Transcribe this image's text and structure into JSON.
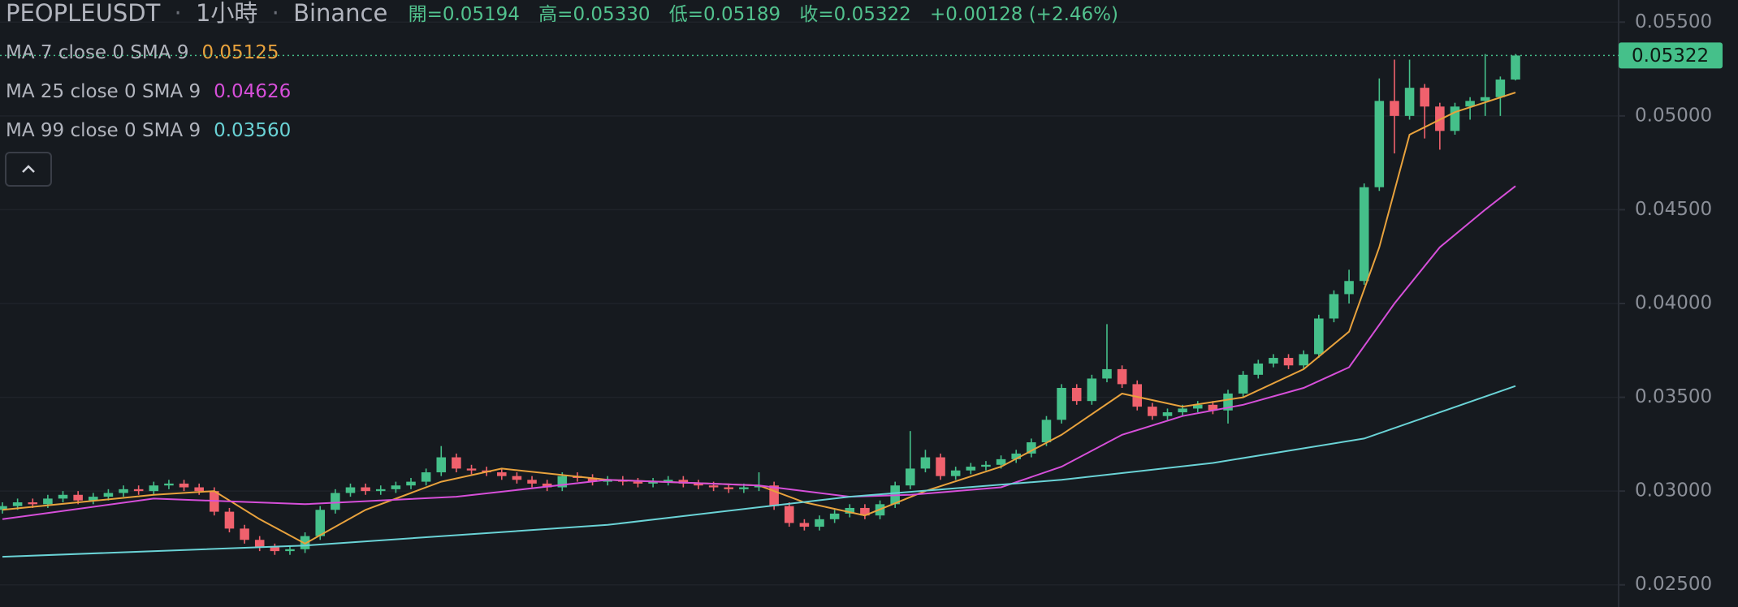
{
  "chart_data": {
    "type": "candlestick",
    "symbol": "PEOPLEUSDT",
    "interval": "1小時",
    "exchange": "Binance",
    "ohlc_header": [
      "開=0.05194",
      "高=0.05330",
      "低=0.05189",
      "收=0.05322",
      "+0.00128 (+2.46%)"
    ],
    "up_color": "#45c08a",
    "down_color": "#f0616d",
    "open": [
      0.029,
      0.0292,
      0.0294,
      0.0293,
      0.0296,
      0.0298,
      0.0295,
      0.0297,
      0.0299,
      0.0301,
      0.03,
      0.0303,
      0.0304,
      0.0302,
      0.03,
      0.0289,
      0.028,
      0.0274,
      0.027,
      0.0268,
      0.0269,
      0.0276,
      0.029,
      0.0299,
      0.0302,
      0.03,
      0.0301,
      0.0303,
      0.0305,
      0.031,
      0.0318,
      0.0312,
      0.0311,
      0.031,
      0.0308,
      0.0306,
      0.0304,
      0.0302,
      0.0308,
      0.0307,
      0.0305,
      0.0306,
      0.0305,
      0.0304,
      0.0305,
      0.0306,
      0.0304,
      0.0303,
      0.0302,
      0.0301,
      0.0302,
      0.0303,
      0.0292,
      0.0283,
      0.0281,
      0.0285,
      0.0288,
      0.0291,
      0.0287,
      0.0293,
      0.0303,
      0.0312,
      0.0318,
      0.0308,
      0.0311,
      0.0313,
      0.0314,
      0.0317,
      0.032,
      0.0326,
      0.0338,
      0.0355,
      0.0348,
      0.036,
      0.0365,
      0.0357,
      0.0345,
      0.034,
      0.0342,
      0.0344,
      0.0346,
      0.0343,
      0.0352,
      0.0362,
      0.0368,
      0.0371,
      0.0367,
      0.0373,
      0.0392,
      0.0405,
      0.0412,
      0.0462,
      0.0508,
      0.05,
      0.0515,
      0.0505,
      0.0492,
      0.0505,
      0.0508,
      0.051,
      0.05194
    ],
    "high": [
      0.0294,
      0.0296,
      0.0296,
      0.0298,
      0.03,
      0.03,
      0.0299,
      0.0301,
      0.0303,
      0.0303,
      0.0305,
      0.0306,
      0.0306,
      0.0304,
      0.0302,
      0.0291,
      0.0282,
      0.0276,
      0.0272,
      0.0271,
      0.0278,
      0.0292,
      0.0301,
      0.0304,
      0.0304,
      0.0303,
      0.0305,
      0.0307,
      0.0312,
      0.0324,
      0.032,
      0.0314,
      0.0313,
      0.0312,
      0.031,
      0.0308,
      0.0306,
      0.031,
      0.031,
      0.0309,
      0.0308,
      0.0308,
      0.0307,
      0.0307,
      0.0308,
      0.0308,
      0.0306,
      0.0305,
      0.0304,
      0.0304,
      0.031,
      0.0305,
      0.0294,
      0.0285,
      0.0287,
      0.029,
      0.0293,
      0.0293,
      0.0295,
      0.0305,
      0.0332,
      0.0322,
      0.032,
      0.0313,
      0.0315,
      0.0316,
      0.0319,
      0.0322,
      0.0328,
      0.034,
      0.0357,
      0.0357,
      0.0362,
      0.0389,
      0.0367,
      0.0359,
      0.0347,
      0.0344,
      0.0346,
      0.0348,
      0.0348,
      0.0354,
      0.0364,
      0.037,
      0.0373,
      0.0373,
      0.0375,
      0.0394,
      0.0407,
      0.0418,
      0.0464,
      0.052,
      0.053,
      0.053,
      0.0517,
      0.0507,
      0.0507,
      0.051,
      0.0533,
      0.0521,
      0.0533
    ],
    "low": [
      0.0288,
      0.029,
      0.0291,
      0.0291,
      0.0294,
      0.0293,
      0.0293,
      0.0295,
      0.0297,
      0.0298,
      0.0298,
      0.0301,
      0.03,
      0.0298,
      0.0287,
      0.0278,
      0.0272,
      0.0268,
      0.0266,
      0.0266,
      0.0267,
      0.0274,
      0.0288,
      0.0297,
      0.0298,
      0.0298,
      0.0299,
      0.0301,
      0.0303,
      0.0308,
      0.031,
      0.0309,
      0.0308,
      0.0306,
      0.0304,
      0.0302,
      0.03,
      0.03,
      0.0305,
      0.0303,
      0.0303,
      0.0303,
      0.0302,
      0.0302,
      0.0303,
      0.0302,
      0.0301,
      0.03,
      0.0299,
      0.0299,
      0.03,
      0.029,
      0.0281,
      0.0279,
      0.0279,
      0.0283,
      0.0286,
      0.0285,
      0.0285,
      0.0291,
      0.0301,
      0.031,
      0.0306,
      0.0306,
      0.0309,
      0.0311,
      0.0312,
      0.0315,
      0.0318,
      0.0324,
      0.0336,
      0.0346,
      0.0346,
      0.0358,
      0.0355,
      0.0343,
      0.0338,
      0.0338,
      0.034,
      0.0342,
      0.0341,
      0.0336,
      0.035,
      0.036,
      0.0366,
      0.0365,
      0.0365,
      0.0371,
      0.039,
      0.04,
      0.041,
      0.046,
      0.048,
      0.0498,
      0.0488,
      0.0482,
      0.049,
      0.0498,
      0.05,
      0.05,
      0.05189
    ],
    "close": [
      0.0292,
      0.0294,
      0.0293,
      0.0296,
      0.0298,
      0.0295,
      0.0297,
      0.0299,
      0.0301,
      0.03,
      0.0303,
      0.0304,
      0.0302,
      0.03,
      0.0289,
      0.028,
      0.0274,
      0.027,
      0.0268,
      0.0269,
      0.0276,
      0.029,
      0.0299,
      0.0302,
      0.03,
      0.0301,
      0.0303,
      0.0305,
      0.031,
      0.0318,
      0.0312,
      0.0311,
      0.031,
      0.0308,
      0.0306,
      0.0304,
      0.0302,
      0.0308,
      0.0307,
      0.0305,
      0.0306,
      0.0305,
      0.0304,
      0.0305,
      0.0306,
      0.0304,
      0.0303,
      0.0302,
      0.0301,
      0.0302,
      0.0303,
      0.0292,
      0.0283,
      0.0281,
      0.0285,
      0.0288,
      0.0291,
      0.0287,
      0.0293,
      0.0303,
      0.0312,
      0.0318,
      0.0308,
      0.0311,
      0.0313,
      0.0314,
      0.0317,
      0.032,
      0.0326,
      0.0338,
      0.0355,
      0.0348,
      0.036,
      0.0365,
      0.0357,
      0.0345,
      0.034,
      0.0342,
      0.0344,
      0.0346,
      0.0343,
      0.0352,
      0.0362,
      0.0368,
      0.0371,
      0.0367,
      0.0373,
      0.0392,
      0.0405,
      0.0412,
      0.0462,
      0.0508,
      0.05,
      0.0515,
      0.0505,
      0.0492,
      0.0505,
      0.0508,
      0.051,
      0.05194,
      0.05322
    ],
    "series": [
      {
        "name": "MA 7 close 0 SMA 9",
        "value_label": "0.05125",
        "color": "#e8a23d",
        "x": [
          0,
          5,
          10,
          14,
          17,
          20,
          24,
          29,
          33,
          40,
          50,
          53,
          57,
          61,
          66,
          70,
          74,
          78,
          82,
          86,
          89,
          91,
          93,
          96,
          100
        ],
        "values": [
          0.029,
          0.0294,
          0.0298,
          0.03,
          0.0285,
          0.0272,
          0.029,
          0.0305,
          0.0312,
          0.0306,
          0.0303,
          0.0294,
          0.0287,
          0.03,
          0.0313,
          0.033,
          0.0352,
          0.0345,
          0.035,
          0.0365,
          0.0385,
          0.043,
          0.049,
          0.0502,
          0.05125
        ]
      },
      {
        "name": "MA 25 close 0 SMA 9",
        "value_label": "0.04626",
        "color": "#d64fd9",
        "x": [
          0,
          10,
          20,
          30,
          40,
          50,
          56,
          60,
          66,
          70,
          74,
          78,
          82,
          86,
          89,
          92,
          95,
          98,
          100
        ],
        "values": [
          0.0285,
          0.0296,
          0.0293,
          0.0297,
          0.0306,
          0.0303,
          0.0297,
          0.0298,
          0.0302,
          0.0313,
          0.033,
          0.034,
          0.0346,
          0.0355,
          0.0366,
          0.04,
          0.043,
          0.045,
          0.04626
        ]
      },
      {
        "name": "MA 99 close 0 SMA 9",
        "value_label": "0.03560",
        "color": "#6ad3d6",
        "x": [
          0,
          20,
          40,
          56,
          70,
          80,
          90,
          95,
          100
        ],
        "values": [
          0.0265,
          0.0271,
          0.0282,
          0.0297,
          0.0306,
          0.0315,
          0.0328,
          0.0342,
          0.0356
        ]
      }
    ],
    "ylim": [
      0.02382,
      0.05618
    ],
    "yticks": [
      {
        "value": 0.025,
        "label": "0.02500"
      },
      {
        "value": 0.03,
        "label": "0.03000"
      },
      {
        "value": 0.035,
        "label": "0.03500"
      },
      {
        "value": 0.04,
        "label": "0.04000"
      },
      {
        "value": 0.045,
        "label": "0.04500"
      },
      {
        "value": 0.05,
        "label": "0.05000"
      },
      {
        "value": 0.055,
        "label": "0.05500"
      }
    ],
    "grid": true
  }
}
